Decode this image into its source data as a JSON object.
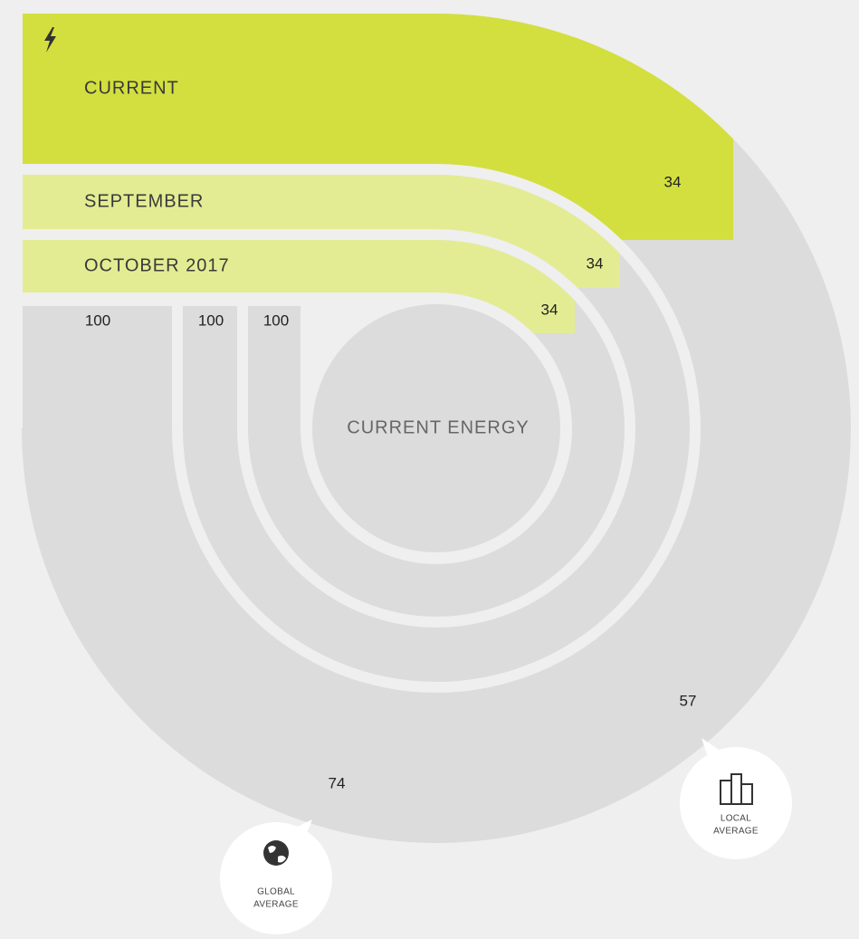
{
  "bands": [
    {
      "label": "CURRENT",
      "value": 34,
      "baseline": 100
    },
    {
      "label": "SEPTEMBER",
      "value": 34,
      "baseline": 100
    },
    {
      "label": "OCTOBER 2017",
      "value": 34,
      "baseline": 100
    }
  ],
  "center_label": "CURRENT ENERGY",
  "local_average": {
    "value": 57,
    "label": [
      "LOCAL",
      "AVERAGE"
    ]
  },
  "global_average": {
    "value": 74,
    "label": [
      "GLOBAL",
      "AVERAGE"
    ]
  }
}
